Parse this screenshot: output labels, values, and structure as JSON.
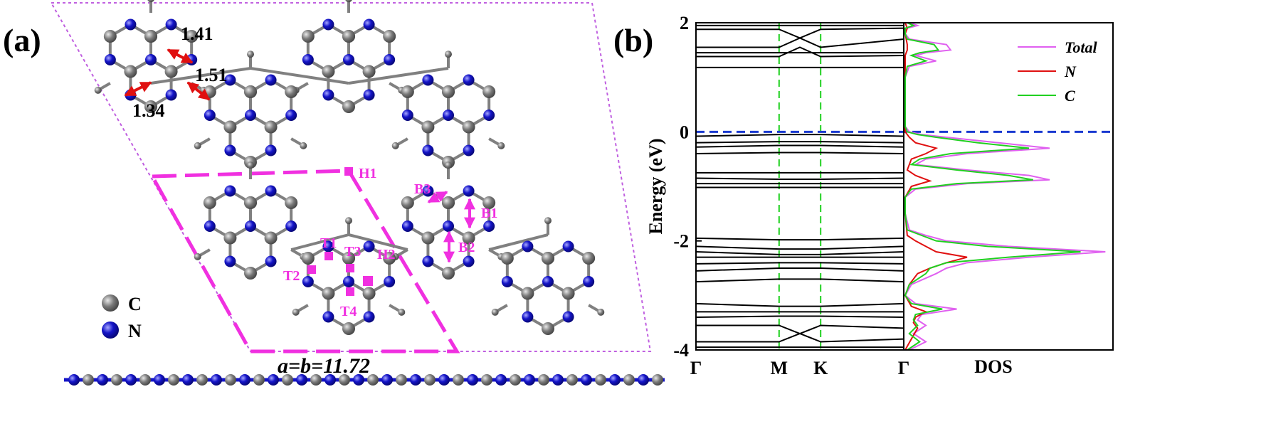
{
  "panel_a": {
    "label": "(a)",
    "lattice_caption": "a=b=11.72",
    "bond_labels": [
      "1.41",
      "1.51",
      "1.34"
    ],
    "site_labels": [
      "H1",
      "B3",
      "B1",
      "B2",
      "T1",
      "T3",
      "H2",
      "T2",
      "T4"
    ],
    "legend": [
      {
        "label": "C",
        "color": "#7a7a7a"
      },
      {
        "label": "N",
        "color": "#1414c8"
      }
    ],
    "colors": {
      "carbon": "#7a7a7a",
      "nitrogen": "#1414c8",
      "bond": "#808080",
      "supercell": "#c060e0",
      "primitive_cell": "#f030e0",
      "site": "#f030e0",
      "arrow": "#e01010"
    }
  },
  "panel_b": {
    "label": "(b)",
    "band_ylabel": "Energy (eV)",
    "dos_xlabel": "DOS",
    "kpoints": [
      "Γ",
      "M",
      "K",
      "Γ"
    ],
    "legend": [
      {
        "label": "Total",
        "color": "#e060f0"
      },
      {
        "label": "N",
        "color": "#e01010"
      },
      {
        "label": "C",
        "color": "#20d020"
      }
    ]
  },
  "chart_data": {
    "type": "line",
    "ylabel": "Energy (eV)",
    "ylim": [
      -4,
      2
    ],
    "yticks": [
      2,
      0,
      -2,
      -4
    ],
    "fermi_level": 0,
    "kpath": [
      "Γ",
      "M",
      "K",
      "Γ"
    ],
    "kpath_positions": [
      0,
      0.4,
      0.6,
      1.0
    ],
    "bands": [
      {
        "x": [
          0,
          0.4,
          0.6,
          1.0
        ],
        "y": [
          1.95,
          1.95,
          1.95,
          1.95
        ]
      },
      {
        "x": [
          0,
          0.4,
          0.5,
          0.6,
          1.0
        ],
        "y": [
          1.88,
          1.88,
          1.72,
          1.88,
          1.9
        ]
      },
      {
        "x": [
          0,
          0.4,
          0.5,
          0.6,
          1.0
        ],
        "y": [
          1.55,
          1.55,
          1.72,
          1.55,
          1.7
        ]
      },
      {
        "x": [
          0,
          0.4,
          0.6,
          1.0
        ],
        "y": [
          1.45,
          1.45,
          1.45,
          1.45
        ]
      },
      {
        "x": [
          0,
          0.4,
          0.5,
          0.6,
          1.0
        ],
        "y": [
          1.38,
          1.38,
          1.55,
          1.38,
          1.4
        ]
      },
      {
        "x": [
          0,
          0.4,
          0.6,
          1.0
        ],
        "y": [
          1.18,
          1.18,
          1.18,
          1.18
        ]
      },
      {
        "x": [
          0,
          0.4,
          0.6,
          1.0
        ],
        "y": [
          -0.08,
          -0.05,
          -0.05,
          -0.08
        ]
      },
      {
        "x": [
          0,
          0.4,
          0.6,
          1.0
        ],
        "y": [
          -0.2,
          -0.18,
          -0.18,
          -0.2
        ]
      },
      {
        "x": [
          0,
          0.4,
          0.6,
          1.0
        ],
        "y": [
          -0.28,
          -0.25,
          -0.25,
          -0.28
        ]
      },
      {
        "x": [
          0,
          0.4,
          0.6,
          1.0
        ],
        "y": [
          -0.4,
          -0.38,
          -0.38,
          -0.4
        ]
      },
      {
        "x": [
          0,
          0.4,
          0.6,
          1.0
        ],
        "y": [
          -0.75,
          -0.75,
          -0.75,
          -0.75
        ]
      },
      {
        "x": [
          0,
          0.4,
          0.6,
          1.0
        ],
        "y": [
          -0.85,
          -0.87,
          -0.87,
          -0.85
        ]
      },
      {
        "x": [
          0,
          0.4,
          0.6,
          1.0
        ],
        "y": [
          -0.95,
          -0.95,
          -0.95,
          -0.95
        ]
      },
      {
        "x": [
          0,
          0.4,
          0.6,
          1.0
        ],
        "y": [
          -1.02,
          -1.02,
          -1.02,
          -1.02
        ]
      },
      {
        "x": [
          0,
          0.4,
          0.6,
          1.0
        ],
        "y": [
          -1.95,
          -1.98,
          -1.98,
          -1.95
        ]
      },
      {
        "x": [
          0,
          0.4,
          0.6,
          1.0
        ],
        "y": [
          -2.1,
          -2.15,
          -2.15,
          -2.1
        ]
      },
      {
        "x": [
          0,
          0.4,
          0.6,
          1.0
        ],
        "y": [
          -2.2,
          -2.25,
          -2.25,
          -2.2
        ]
      },
      {
        "x": [
          0,
          0.4,
          0.6,
          1.0
        ],
        "y": [
          -2.3,
          -2.3,
          -2.3,
          -2.3
        ]
      },
      {
        "x": [
          0,
          0.4,
          0.6,
          1.0
        ],
        "y": [
          -2.42,
          -2.4,
          -2.4,
          -2.42
        ]
      },
      {
        "x": [
          0,
          0.4,
          0.6,
          1.0
        ],
        "y": [
          -2.55,
          -2.5,
          -2.5,
          -2.55
        ]
      },
      {
        "x": [
          0,
          0.4,
          0.6,
          1.0
        ],
        "y": [
          -2.75,
          -2.7,
          -2.7,
          -2.75
        ]
      },
      {
        "x": [
          0,
          0.4,
          0.6,
          1.0
        ],
        "y": [
          -3.15,
          -3.2,
          -3.2,
          -3.15
        ]
      },
      {
        "x": [
          0,
          0.4,
          0.6,
          1.0
        ],
        "y": [
          -3.3,
          -3.3,
          -3.3,
          -3.3
        ]
      },
      {
        "x": [
          0,
          0.4,
          0.6,
          1.0
        ],
        "y": [
          -3.4,
          -3.38,
          -3.38,
          -3.4
        ]
      },
      {
        "x": [
          0,
          0.4,
          0.5,
          0.6,
          1.0
        ],
        "y": [
          -3.55,
          -3.55,
          -3.7,
          -3.55,
          -3.6
        ]
      },
      {
        "x": [
          0,
          0.4,
          0.5,
          0.6,
          1.0
        ],
        "y": [
          -3.85,
          -3.85,
          -3.7,
          -3.85,
          -3.8
        ]
      },
      {
        "x": [
          0,
          0.4,
          0.6,
          1.0
        ],
        "y": [
          -3.95,
          -3.95,
          -3.95,
          -3.95
        ]
      }
    ],
    "dos": [
      {
        "name": "Total",
        "color": "#e060f0",
        "energy": [
          2.0,
          1.95,
          1.9,
          1.8,
          1.7,
          1.6,
          1.5,
          1.45,
          1.4,
          1.3,
          1.2,
          1.0,
          0.5,
          0.1,
          0.0,
          -0.05,
          -0.1,
          -0.2,
          -0.3,
          -0.4,
          -0.5,
          -0.6,
          -0.7,
          -0.8,
          -0.88,
          -0.95,
          -1.05,
          -1.2,
          -1.5,
          -1.8,
          -1.9,
          -2.0,
          -2.1,
          -2.2,
          -2.3,
          -2.4,
          -2.5,
          -2.6,
          -2.8,
          -3.0,
          -3.15,
          -3.25,
          -3.35,
          -3.45,
          -3.55,
          -3.7,
          -3.85,
          -4.0
        ],
        "value": [
          0.02,
          0.06,
          0.01,
          0.0,
          0.02,
          0.2,
          0.22,
          0.1,
          0.05,
          0.15,
          0.02,
          0.0,
          0.0,
          0.0,
          0.02,
          0.08,
          0.2,
          0.45,
          0.7,
          0.3,
          0.1,
          0.05,
          0.3,
          0.6,
          0.7,
          0.3,
          0.05,
          0.0,
          0.0,
          0.02,
          0.1,
          0.2,
          0.5,
          0.97,
          0.6,
          0.3,
          0.2,
          0.15,
          0.03,
          0.0,
          0.05,
          0.25,
          0.08,
          0.06,
          0.1,
          0.04,
          0.1,
          0.02
        ]
      },
      {
        "name": "N",
        "color": "#e01010",
        "energy": [
          2.0,
          1.9,
          1.8,
          1.6,
          1.5,
          1.4,
          1.2,
          0.5,
          0.0,
          -0.1,
          -0.2,
          -0.3,
          -0.4,
          -0.5,
          -0.7,
          -0.8,
          -0.9,
          -1.0,
          -1.2,
          -1.5,
          -1.9,
          -2.0,
          -2.1,
          -2.2,
          -2.3,
          -2.4,
          -2.5,
          -2.6,
          -2.8,
          -3.0,
          -3.2,
          -3.3,
          -3.4,
          -3.5,
          -3.6,
          -3.8,
          -4.0
        ],
        "value": [
          0.0,
          0.01,
          0.0,
          0.01,
          0.01,
          0.0,
          0.0,
          0.0,
          0.0,
          0.02,
          0.05,
          0.15,
          0.1,
          0.03,
          0.01,
          0.05,
          0.12,
          0.03,
          0.0,
          0.0,
          0.01,
          0.05,
          0.1,
          0.15,
          0.3,
          0.2,
          0.12,
          0.06,
          0.02,
          0.0,
          0.03,
          0.1,
          0.05,
          0.04,
          0.06,
          0.03,
          0.0
        ]
      },
      {
        "name": "C",
        "color": "#20d020",
        "energy": [
          2.0,
          1.95,
          1.9,
          1.8,
          1.7,
          1.6,
          1.5,
          1.45,
          1.4,
          1.3,
          1.2,
          1.0,
          0.5,
          0.1,
          0.0,
          -0.05,
          -0.1,
          -0.2,
          -0.3,
          -0.4,
          -0.5,
          -0.6,
          -0.7,
          -0.8,
          -0.88,
          -0.95,
          -1.05,
          -1.2,
          -1.5,
          -1.8,
          -1.9,
          -2.0,
          -2.1,
          -2.2,
          -2.3,
          -2.4,
          -2.5,
          -2.6,
          -2.8,
          -3.0,
          -3.15,
          -3.25,
          -3.35,
          -3.45,
          -3.55,
          -3.7,
          -3.85,
          -4.0
        ],
        "value": [
          0.01,
          0.04,
          0.0,
          0.0,
          0.01,
          0.14,
          0.16,
          0.07,
          0.03,
          0.1,
          0.01,
          0.0,
          0.0,
          0.0,
          0.01,
          0.06,
          0.15,
          0.35,
          0.6,
          0.22,
          0.07,
          0.03,
          0.25,
          0.5,
          0.62,
          0.25,
          0.03,
          0.0,
          0.0,
          0.01,
          0.08,
          0.15,
          0.4,
          0.85,
          0.5,
          0.2,
          0.12,
          0.1,
          0.02,
          0.0,
          0.03,
          0.18,
          0.05,
          0.04,
          0.06,
          0.02,
          0.07,
          0.01
        ]
      }
    ]
  }
}
